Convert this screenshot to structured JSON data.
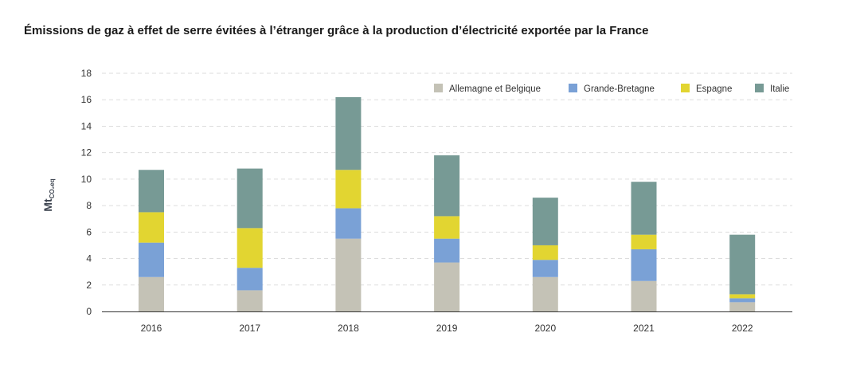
{
  "chart_data": {
    "type": "bar",
    "stacked": true,
    "title": "Émissions de gaz à effet de serre évitées à l’étranger grâce à la production d’électricité exportée par la France",
    "ylabel_main": "Mt",
    "ylabel_sub": "CO₂eq",
    "xlabel": "",
    "ylim": [
      0,
      18
    ],
    "yticks": [
      0,
      2,
      4,
      6,
      8,
      10,
      12,
      14,
      16,
      18
    ],
    "grid": true,
    "legend_position": "top-right",
    "categories": [
      "2016",
      "2017",
      "2018",
      "2019",
      "2020",
      "2021",
      "2022"
    ],
    "series": [
      {
        "name": "Allemagne et Belgique",
        "color": "#c4c2b6",
        "values": [
          2.6,
          1.6,
          5.5,
          3.7,
          2.6,
          2.3,
          0.7
        ]
      },
      {
        "name": "Grande-Bretagne",
        "color": "#7aa1d6",
        "values": [
          2.6,
          1.7,
          2.3,
          1.8,
          1.3,
          2.4,
          0.3
        ]
      },
      {
        "name": "Espagne",
        "color": "#e2d531",
        "values": [
          2.3,
          3.0,
          2.9,
          1.7,
          1.1,
          1.1,
          0.3
        ]
      },
      {
        "name": "Italie",
        "color": "#779a95",
        "values": [
          3.2,
          4.5,
          5.5,
          4.6,
          3.6,
          4.0,
          4.5
        ]
      }
    ]
  }
}
